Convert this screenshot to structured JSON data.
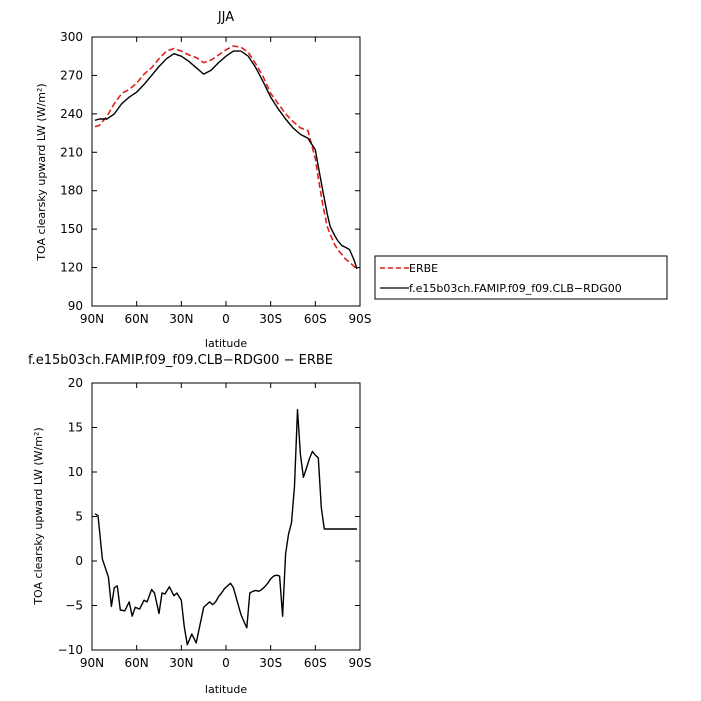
{
  "chart_data": [
    {
      "type": "line",
      "title": "JJA",
      "xlabel": "latitude",
      "ylabel": "TOA clearsky upward LW (W/m²)",
      "xlim": [
        90,
        -90
      ],
      "ylim": [
        90,
        300
      ],
      "x_ticks": [
        90,
        60,
        30,
        0,
        -30,
        -60,
        -90
      ],
      "x_tick_labels": [
        "90N",
        "60N",
        "30N",
        "0",
        "30S",
        "60S",
        "90S"
      ],
      "y_ticks": [
        90,
        120,
        150,
        180,
        210,
        240,
        270,
        300
      ],
      "y_tick_labels": [
        "90",
        "120",
        "150",
        "180",
        "210",
        "240",
        "270",
        "300"
      ],
      "legend": "right",
      "series": [
        {
          "name": "ERBE",
          "color": "#e0201a",
          "dash": "dashed",
          "x": [
            88,
            85,
            80,
            75,
            70,
            65,
            60,
            55,
            50,
            45,
            40,
            35,
            30,
            25,
            20,
            15,
            10,
            5,
            0,
            -5,
            -10,
            -15,
            -20,
            -25,
            -30,
            -35,
            -40,
            -45,
            -50,
            -55,
            -60,
            -62,
            -65,
            -68,
            -70,
            -73,
            -75,
            -78,
            -80,
            -83,
            -86,
            -88
          ],
          "y": [
            230,
            231,
            238,
            248,
            256,
            259,
            264,
            271,
            276,
            283,
            289,
            291,
            289,
            286,
            284,
            280,
            282,
            286,
            290,
            293,
            292,
            288,
            279,
            269,
            256,
            248,
            240,
            234,
            229,
            227,
            205,
            190,
            169,
            152,
            146,
            138,
            134,
            130,
            127,
            124,
            121,
            118
          ]
        },
        {
          "name": "f.e15b03ch.FAMIP.f09_f09.CLB−RDG00",
          "color": "#000000",
          "dash": "solid",
          "x": [
            88,
            85,
            80,
            75,
            70,
            65,
            60,
            55,
            50,
            45,
            40,
            35,
            30,
            25,
            20,
            15,
            10,
            5,
            0,
            -5,
            -10,
            -15,
            -20,
            -25,
            -30,
            -35,
            -40,
            -45,
            -50,
            -55,
            -60,
            -62,
            -65,
            -68,
            -70,
            -73,
            -75,
            -78,
            -80,
            -83,
            -86,
            -88
          ],
          "y": [
            235,
            236,
            236,
            240,
            248,
            253,
            257,
            263,
            270,
            277,
            283,
            287,
            285,
            281,
            276,
            271,
            274,
            280,
            285,
            289,
            289,
            285,
            276,
            265,
            253,
            244,
            236,
            229,
            224,
            221,
            212,
            199,
            180,
            162,
            152,
            145,
            141,
            137,
            136,
            134,
            126,
            119
          ]
        }
      ]
    },
    {
      "type": "line",
      "title": "f.e15b03ch.FAMIP.f09_f09.CLB−RDG00 − ERBE",
      "xlabel": "latitude",
      "ylabel": "TOA clearsky upward LW (W/m²)",
      "xlim": [
        90,
        -90
      ],
      "ylim": [
        -10,
        20
      ],
      "x_ticks": [
        90,
        60,
        30,
        0,
        -30,
        -60,
        -90
      ],
      "x_tick_labels": [
        "90N",
        "60N",
        "30N",
        "0",
        "30S",
        "60S",
        "90S"
      ],
      "y_ticks": [
        -10,
        -5,
        0,
        5,
        10,
        15,
        20
      ],
      "y_tick_labels": [
        "−10",
        "−5",
        "0",
        "5",
        "10",
        "15",
        "20"
      ],
      "series": [
        {
          "color": "#000000",
          "dash": "solid",
          "x": [
            88,
            86,
            83,
            79,
            77,
            75,
            73,
            71,
            68,
            65,
            63,
            61,
            58,
            55,
            53,
            50,
            48,
            45,
            43,
            41,
            38,
            35,
            33,
            30,
            28,
            26,
            23,
            20,
            18,
            15,
            13,
            11,
            9,
            7,
            5,
            3,
            1,
            -1,
            -3,
            -5,
            -8,
            -10,
            -12,
            -14,
            -16,
            -18,
            -20,
            -22,
            -24,
            -26,
            -28,
            -30,
            -32,
            -34,
            -36,
            -38,
            -40,
            -42,
            -44,
            -46,
            -48,
            -50,
            -52,
            -54,
            -56,
            -58,
            -60,
            -62,
            -64,
            -66,
            -68,
            -70,
            -72,
            -74,
            -76,
            -78,
            -80,
            -82,
            -84,
            -86,
            -88
          ],
          "y": [
            5.3,
            5.1,
            0.2,
            -1.8,
            -5.1,
            -3.0,
            -2.8,
            -5.5,
            -5.6,
            -4.6,
            -6.2,
            -5.2,
            -5.4,
            -4.4,
            -4.6,
            -3.2,
            -3.6,
            -5.9,
            -3.6,
            -3.7,
            -2.9,
            -3.9,
            -3.6,
            -4.4,
            -7.4,
            -9.4,
            -8.2,
            -9.2,
            -7.6,
            -5.2,
            -4.9,
            -4.6,
            -4.9,
            -4.6,
            -4.0,
            -3.6,
            -3.1,
            -2.8,
            -2.5,
            -3.0,
            -4.8,
            -6.0,
            -6.8,
            -7.5,
            -3.6,
            -3.4,
            -3.3,
            -3.4,
            -3.2,
            -2.9,
            -2.5,
            -2.0,
            -1.7,
            -1.6,
            -1.7,
            -6.2,
            0.8,
            3.0,
            4.3,
            8.4,
            17.0,
            12.0,
            9.4,
            10.4,
            11.5,
            12.3,
            11.9,
            11.6,
            6.0,
            3.6,
            3.6,
            3.6,
            3.6,
            3.6,
            3.6,
            3.6,
            3.6,
            3.6,
            3.6,
            3.6,
            3.6
          ]
        }
      ]
    }
  ]
}
